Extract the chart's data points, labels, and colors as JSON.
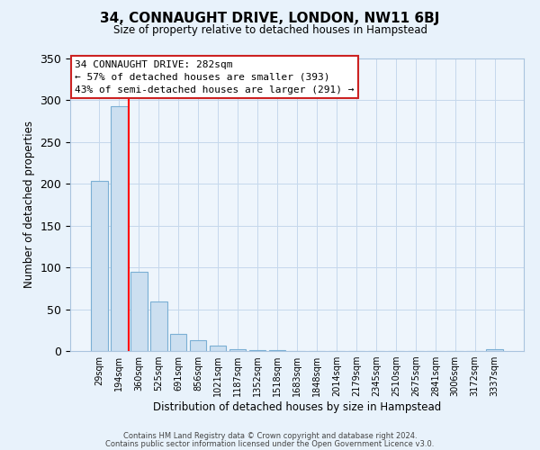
{
  "title": "34, CONNAUGHT DRIVE, LONDON, NW11 6BJ",
  "subtitle": "Size of property relative to detached houses in Hampstead",
  "xlabel": "Distribution of detached houses by size in Hampstead",
  "ylabel": "Number of detached properties",
  "bar_labels": [
    "29sqm",
    "194sqm",
    "360sqm",
    "525sqm",
    "691sqm",
    "856sqm",
    "1021sqm",
    "1187sqm",
    "1352sqm",
    "1518sqm",
    "1683sqm",
    "1848sqm",
    "2014sqm",
    "2179sqm",
    "2345sqm",
    "2510sqm",
    "2675sqm",
    "2841sqm",
    "3006sqm",
    "3172sqm",
    "3337sqm"
  ],
  "bar_values": [
    204,
    293,
    95,
    59,
    21,
    13,
    6,
    2,
    1,
    1,
    0,
    0,
    0,
    0,
    0,
    0,
    0,
    0,
    0,
    0,
    2
  ],
  "bar_color": "#ccdff0",
  "bar_edge_color": "#7bafd4",
  "ylim": [
    0,
    350
  ],
  "yticks": [
    0,
    50,
    100,
    150,
    200,
    250,
    300,
    350
  ],
  "red_line_x": 1.5,
  "annotation_title": "34 CONNAUGHT DRIVE: 282sqm",
  "annotation_line1": "← 57% of detached houses are smaller (393)",
  "annotation_line2": "43% of semi-detached houses are larger (291) →",
  "footer1": "Contains HM Land Registry data © Crown copyright and database right 2024.",
  "footer2": "Contains public sector information licensed under the Open Government Licence v3.0.",
  "bg_color": "#e8f2fb",
  "plot_bg_color": "#eef5fc",
  "grid_color": "#c5d8ec"
}
